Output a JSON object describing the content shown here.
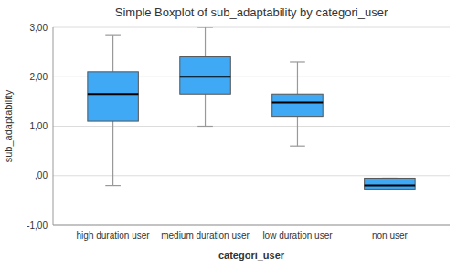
{
  "chart_data": {
    "type": "box",
    "title": "Simple Boxplot of sub_adaptability by categori_user",
    "xlabel": "categori_user",
    "ylabel": "sub_adaptability",
    "categories": [
      "high duration user",
      "medium duration user",
      "low duration user",
      "non user"
    ],
    "boxes": [
      {
        "whisker_low": -0.2,
        "q1": 1.1,
        "median": 1.65,
        "q3": 2.1,
        "whisker_high": 2.85
      },
      {
        "whisker_low": 1.0,
        "q1": 1.65,
        "median": 2.0,
        "q3": 2.4,
        "whisker_high": 3.0
      },
      {
        "whisker_low": 0.6,
        "q1": 1.2,
        "median": 1.48,
        "q3": 1.65,
        "whisker_high": 2.3
      },
      {
        "whisker_low": -0.22,
        "q1": -0.27,
        "median": -0.2,
        "q3": -0.05,
        "whisker_high": -0.05
      }
    ],
    "color": "#3fa9f5",
    "ylim": [
      -1.0,
      3.0
    ],
    "yticks": [
      {
        "value": -1.0,
        "label": "-1,00"
      },
      {
        "value": 0.0,
        "label": ",00"
      },
      {
        "value": 1.0,
        "label": "1,00"
      },
      {
        "value": 2.0,
        "label": "2,00"
      },
      {
        "value": 3.0,
        "label": "3,00"
      }
    ],
    "grid": true
  }
}
